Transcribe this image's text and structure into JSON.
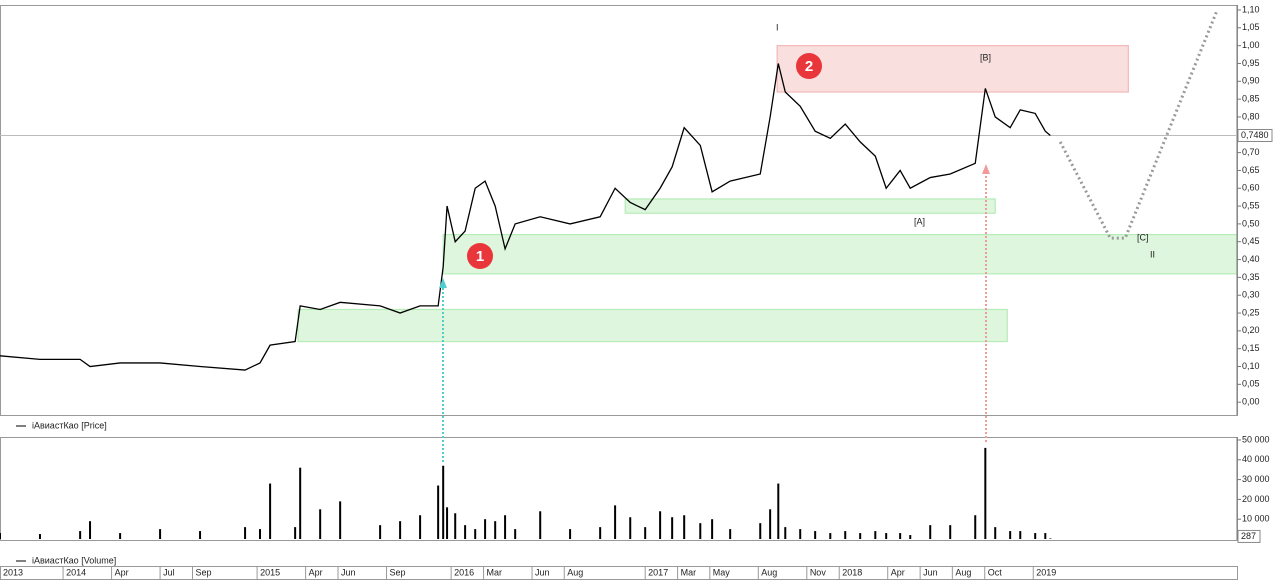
{
  "chart_data": {
    "type": "line",
    "x": [
      2013.675,
      2013.881,
      2014.088,
      2014.139,
      2014.294,
      2014.5,
      2014.706,
      2014.938,
      2015.015,
      2015.067,
      2015.196,
      2015.222,
      2015.325,
      2015.428,
      2015.634,
      2015.737,
      2015.84,
      2015.933,
      2015.959,
      2015.979,
      2016.021,
      2016.072,
      2016.124,
      2016.175,
      2016.227,
      2016.278,
      2016.33,
      2016.459,
      2016.613,
      2016.768,
      2016.845,
      2016.923,
      2017.0,
      2017.077,
      2017.139,
      2017.201,
      2017.284,
      2017.345,
      2017.438,
      2017.593,
      2017.644,
      2017.686,
      2017.722,
      2017.799,
      2017.876,
      2017.954,
      2018.031,
      2018.108,
      2018.186,
      2018.242,
      2018.314,
      2018.366,
      2018.469,
      2018.572,
      2018.701,
      2018.753,
      2018.804,
      2018.881,
      2018.933,
      2019.01,
      2019.062,
      2019.088
    ],
    "series": [
      {
        "name": "iАвиастКао [Price]",
        "color": "#000000",
        "values": [
          0.13,
          0.12,
          0.12,
          0.1,
          0.11,
          0.11,
          0.1,
          0.09,
          0.11,
          0.16,
          0.17,
          0.27,
          0.26,
          0.28,
          0.27,
          0.25,
          0.27,
          0.27,
          0.38,
          0.55,
          0.45,
          0.48,
          0.6,
          0.62,
          0.55,
          0.43,
          0.5,
          0.52,
          0.5,
          0.52,
          0.6,
          0.56,
          0.54,
          0.6,
          0.66,
          0.77,
          0.72,
          0.59,
          0.62,
          0.64,
          0.8,
          0.95,
          0.87,
          0.83,
          0.76,
          0.74,
          0.78,
          0.73,
          0.69,
          0.6,
          0.65,
          0.6,
          0.63,
          0.64,
          0.67,
          0.88,
          0.8,
          0.77,
          0.82,
          0.81,
          0.76,
          0.748
        ]
      },
      {
        "name": "iАвиастКао [Volume]",
        "color": "#000000",
        "axis": "y2",
        "values": [
          3000,
          2500,
          4000,
          9000,
          3000,
          5000,
          4000,
          6000,
          5000,
          28000,
          6000,
          36000,
          15000,
          19000,
          7000,
          9000,
          12000,
          27000,
          37000,
          16000,
          13000,
          7000,
          5000,
          10000,
          9000,
          12000,
          5000,
          14000,
          5000,
          6000,
          17000,
          11000,
          6000,
          14000,
          11000,
          12000,
          8000,
          10000,
          5000,
          8000,
          15000,
          28000,
          6000,
          5000,
          4000,
          3000,
          4000,
          3000,
          4000,
          3000,
          3000,
          2000,
          7000,
          7000,
          12000,
          46000,
          6000,
          4000,
          4000,
          3000,
          3000,
          287
        ],
        "value_labels_last": "287"
      }
    ],
    "last_price": {
      "value": 0.748,
      "label": "0,7480"
    },
    "xlim": [
      2013.675,
      2020.05
    ],
    "xticks": [
      {
        "value": 2013.675,
        "label": "2013"
      },
      2014,
      {
        "value": 2014.25,
        "label": "Apr"
      },
      {
        "value": 2014.5,
        "label": "Jul"
      },
      {
        "value": 2014.667,
        "label": "Sep"
      },
      2015,
      {
        "value": 2015.25,
        "label": "Apr"
      },
      {
        "value": 2015.417,
        "label": "Jun"
      },
      {
        "value": 2015.667,
        "label": "Sep"
      },
      2016,
      {
        "value": 2016.167,
        "label": "Mar"
      },
      {
        "value": 2016.417,
        "label": "Jun"
      },
      {
        "value": 2016.583,
        "label": "Aug"
      },
      2017,
      {
        "value": 2017.167,
        "label": "Mar"
      },
      {
        "value": 2017.333,
        "label": "May"
      },
      {
        "value": 2017.583,
        "label": "Aug"
      },
      {
        "value": 2017.833,
        "label": "Nov"
      },
      2018,
      {
        "value": 2018.25,
        "label": "Apr"
      },
      {
        "value": 2018.417,
        "label": "Jun"
      },
      {
        "value": 2018.583,
        "label": "Aug"
      },
      {
        "value": 2018.75,
        "label": "Oct"
      },
      2019
    ],
    "ylim": [
      -0.036,
      1.114
    ],
    "yticks": [
      {
        "value": 0,
        "label": "0,00"
      },
      {
        "value": 0.05,
        "label": "0,05"
      },
      {
        "value": 0.1,
        "label": "0,10"
      },
      {
        "value": 0.15,
        "label": "0,15"
      },
      {
        "value": 0.2,
        "label": "0,20"
      },
      {
        "value": 0.25,
        "label": "0,25"
      },
      {
        "value": 0.3,
        "label": "0,30"
      },
      {
        "value": 0.35,
        "label": "0,35"
      },
      {
        "value": 0.4,
        "label": "0,40"
      },
      {
        "value": 0.45,
        "label": "0,45"
      },
      {
        "value": 0.5,
        "label": "0,50"
      },
      {
        "value": 0.55,
        "label": "0,55"
      },
      {
        "value": 0.6,
        "label": "0,60"
      },
      {
        "value": 0.65,
        "label": "0,65"
      },
      {
        "value": 0.7,
        "label": "0,70"
      },
      {
        "value": 0.75,
        "label": "0,75"
      },
      {
        "value": 0.8,
        "label": "0,80"
      },
      {
        "value": 0.85,
        "label": "0,85"
      },
      {
        "value": 0.9,
        "label": "0,90"
      },
      {
        "value": 0.95,
        "label": "0,95"
      },
      {
        "value": 1,
        "label": "1,00"
      },
      {
        "value": 1.05,
        "label": "1,05"
      },
      {
        "value": 1.1,
        "label": "1,10"
      }
    ],
    "y2lim": [
      -500,
      51500
    ],
    "y2ticks": [
      {
        "value": 10000,
        "label": "10 000"
      },
      {
        "value": 20000,
        "label": "20 000"
      },
      {
        "value": 30000,
        "label": "30 000"
      },
      {
        "value": 40000,
        "label": "40 000"
      },
      {
        "value": 50000,
        "label": "50 000"
      }
    ],
    "zones": [
      {
        "x": [
          2017.68,
          2019.49
        ],
        "y": [
          0.87,
          1.0
        ],
        "color": "#f4b8b8"
      },
      {
        "x": [
          2016.897,
          2018.804
        ],
        "y": [
          0.53,
          0.57
        ],
        "color": "#b6ecb6"
      },
      {
        "x": [
          2015.959,
          2020.05
        ],
        "y": [
          0.36,
          0.47
        ],
        "color": "#b6ecb6"
      },
      {
        "x": [
          2015.211,
          2018.866
        ],
        "y": [
          0.17,
          0.26
        ],
        "color": "#b6ecb6"
      }
    ],
    "forecast": {
      "color": "#999999",
      "x": [
        2019.139,
        2019.397,
        2019.474,
        2019.948
      ],
      "values": [
        0.73,
        0.46,
        0.46,
        1.1
      ]
    },
    "annotations": [
      "I",
      "[B]",
      "[A]",
      "[C]",
      "II",
      "1",
      "2"
    ]
  }
}
